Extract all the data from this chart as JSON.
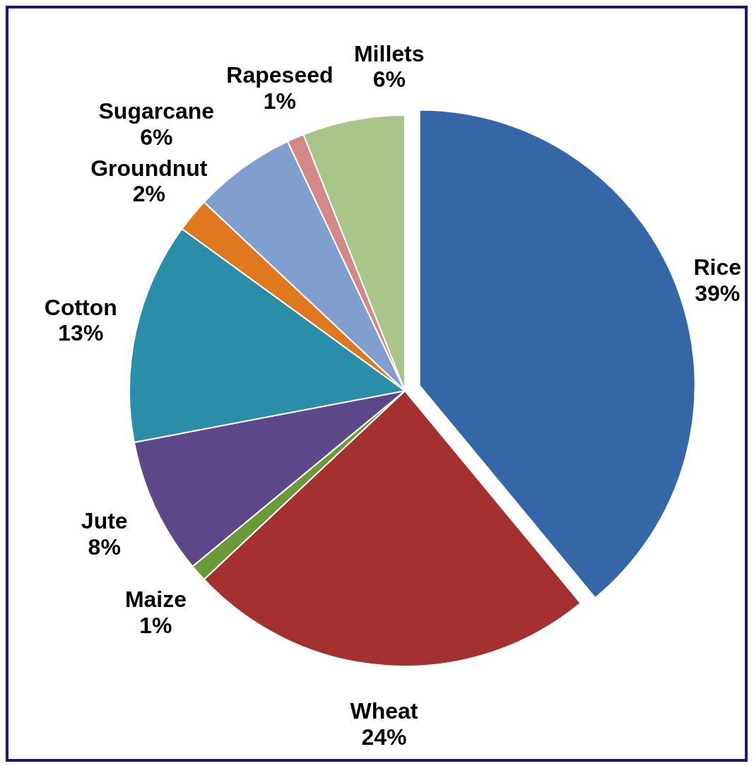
{
  "chart_data": {
    "type": "pie",
    "categories": [
      "Rice",
      "Wheat",
      "Maize",
      "Jute",
      "Cotton",
      "Groundnut",
      "Sugarcane",
      "Rapeseed",
      "Millets"
    ],
    "values": [
      39,
      24,
      1,
      8,
      13,
      2,
      6,
      1,
      6
    ],
    "value_labels": [
      "39%",
      "24%",
      "1%",
      "8%",
      "13%",
      "2%",
      "6%",
      "1%",
      "6%"
    ],
    "colors": [
      "#3567a8",
      "#a53030",
      "#6a9a38",
      "#5c4888",
      "#2a8ea8",
      "#e07820",
      "#809fcf",
      "#d48888",
      "#a8c488"
    ]
  }
}
